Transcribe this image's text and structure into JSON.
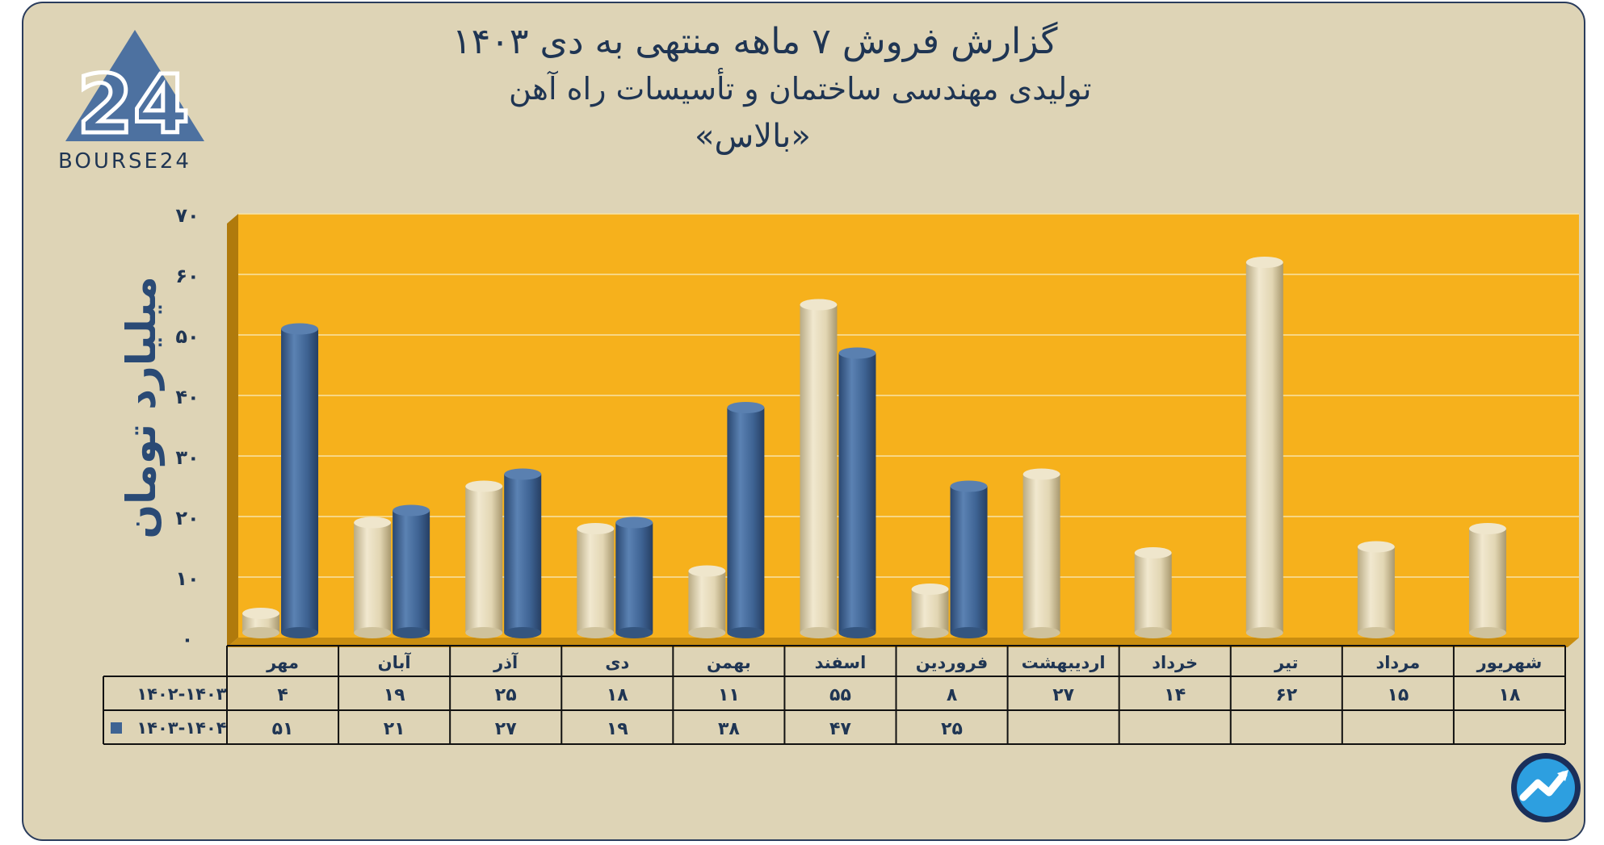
{
  "header": {
    "title": "گزارش  فروش ۷ ماهه منتهی به دی ۱۴۰۳",
    "subtitle": "تولیدی مهندسی ساختمان و تأسیسات راه آهن",
    "ticker": "«بالاس»"
  },
  "logo": {
    "text": "BOURSE24",
    "mark": "24"
  },
  "colors": {
    "background": "#ded4b6",
    "plot_area": "#f6b11c",
    "series_1": "#e2d6b3",
    "series_2": "#3e6393",
    "text": "#1f3553"
  },
  "chart_data": {
    "type": "bar",
    "ylabel": "میلیارد تومان",
    "yticks": [
      "۰",
      "۱۰",
      "۲۰",
      "۳۰",
      "۴۰",
      "۵۰",
      "۶۰",
      "۷۰"
    ],
    "ylim": [
      0,
      70
    ],
    "grid": true,
    "categories": [
      "مهر",
      "آبان",
      "آذر",
      "دی",
      "بهمن",
      "اسفند",
      "فروردین",
      "اردیبهشت",
      "خرداد",
      "تیر",
      "مرداد",
      "شهریور"
    ],
    "series": [
      {
        "name": "۱۴۰۲-۱۴۰۳",
        "values": [
          4,
          19,
          25,
          18,
          11,
          55,
          8,
          27,
          14,
          62,
          15,
          18
        ],
        "labels": [
          "۴",
          "۱۹",
          "۲۵",
          "۱۸",
          "۱۱",
          "۵۵",
          "۸",
          "۲۷",
          "۱۴",
          "۶۲",
          "۱۵",
          "۱۸"
        ]
      },
      {
        "name": "۱۴۰۳-۱۴۰۴",
        "values": [
          51,
          21,
          27,
          19,
          38,
          47,
          25,
          null,
          null,
          null,
          null,
          null
        ],
        "labels": [
          "۵۱",
          "۲۱",
          "۲۷",
          "۱۹",
          "۳۸",
          "۴۷",
          "۲۵",
          "",
          "",
          "",
          "",
          ""
        ]
      }
    ]
  }
}
